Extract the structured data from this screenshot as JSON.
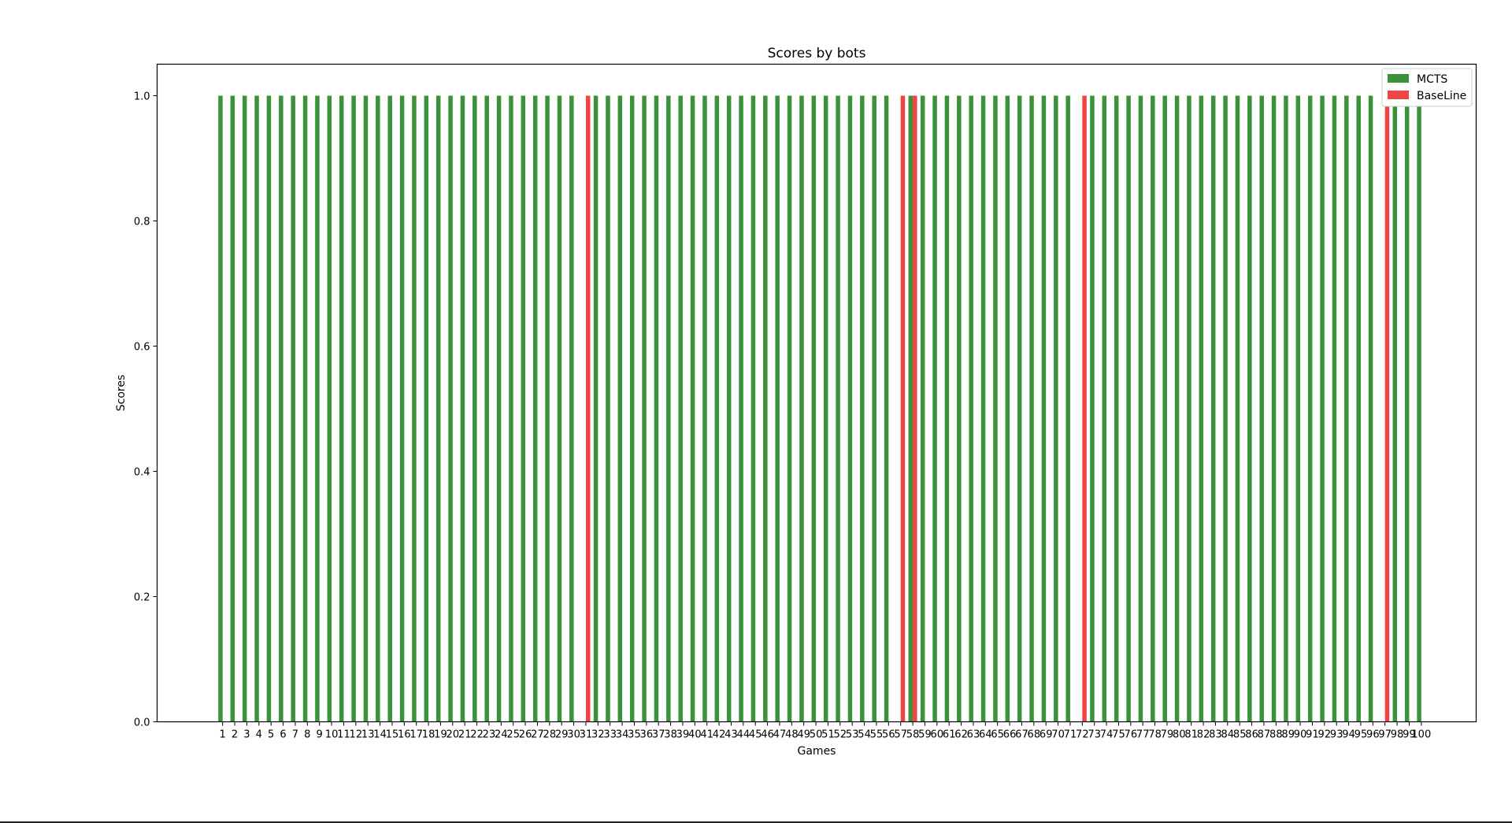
{
  "chart_data": {
    "type": "bar",
    "title": "Scores by bots",
    "xlabel": "Games",
    "ylabel": "Scores",
    "ylim": [
      0,
      1.05
    ],
    "yticks": [
      "0.0",
      "0.2",
      "0.4",
      "0.6",
      "0.8",
      "1.0"
    ],
    "categories": [
      "1",
      "2",
      "3",
      "4",
      "5",
      "6",
      "7",
      "8",
      "9",
      "10",
      "11",
      "12",
      "13",
      "14",
      "15",
      "16",
      "17",
      "18",
      "19",
      "20",
      "21",
      "22",
      "23",
      "24",
      "25",
      "26",
      "27",
      "28",
      "29",
      "30",
      "31",
      "32",
      "33",
      "34",
      "35",
      "36",
      "37",
      "38",
      "39",
      "40",
      "41",
      "42",
      "43",
      "44",
      "45",
      "46",
      "47",
      "48",
      "49",
      "50",
      "51",
      "52",
      "53",
      "54",
      "55",
      "56",
      "57",
      "58",
      "59",
      "60",
      "61",
      "62",
      "63",
      "64",
      "65",
      "66",
      "67",
      "68",
      "69",
      "70",
      "71",
      "72",
      "73",
      "74",
      "75",
      "76",
      "77",
      "78",
      "79",
      "80",
      "81",
      "82",
      "83",
      "84",
      "85",
      "86",
      "87",
      "88",
      "89",
      "90",
      "91",
      "92",
      "93",
      "94",
      "95",
      "96",
      "97",
      "98",
      "99",
      "100"
    ],
    "legend_position": "top-right",
    "grid": false,
    "series": [
      {
        "name": "MCTS",
        "color": "#3a923a",
        "values": [
          1,
          1,
          1,
          1,
          1,
          1,
          1,
          1,
          1,
          1,
          1,
          1,
          1,
          1,
          1,
          1,
          1,
          1,
          1,
          1,
          1,
          1,
          1,
          1,
          1,
          1,
          1,
          1,
          1,
          1,
          0,
          1,
          1,
          1,
          1,
          1,
          1,
          1,
          1,
          1,
          1,
          1,
          1,
          1,
          1,
          1,
          1,
          1,
          1,
          1,
          1,
          1,
          1,
          1,
          1,
          1,
          0,
          1,
          1,
          1,
          1,
          1,
          1,
          1,
          1,
          1,
          1,
          1,
          1,
          1,
          1,
          0,
          1,
          1,
          1,
          1,
          1,
          1,
          1,
          1,
          1,
          1,
          1,
          1,
          1,
          1,
          1,
          1,
          1,
          1,
          1,
          1,
          1,
          1,
          1,
          1,
          0,
          1,
          1,
          1
        ]
      },
      {
        "name": "BaseLine",
        "color": "#ef4444",
        "values": [
          0,
          0,
          0,
          0,
          0,
          0,
          0,
          0,
          0,
          0,
          0,
          0,
          0,
          0,
          0,
          0,
          0,
          0,
          0,
          0,
          0,
          0,
          0,
          0,
          0,
          0,
          0,
          0,
          0,
          0,
          1,
          0,
          0,
          0,
          0,
          0,
          0,
          0,
          0,
          0,
          0,
          0,
          0,
          0,
          0,
          0,
          0,
          0,
          0,
          0,
          0,
          0,
          0,
          0,
          0,
          0,
          1,
          1,
          0,
          0,
          0,
          0,
          0,
          0,
          0,
          0,
          0,
          0,
          0,
          0,
          0,
          1,
          0,
          0,
          0,
          0,
          0,
          0,
          0,
          0,
          0,
          0,
          0,
          0,
          0,
          0,
          0,
          0,
          0,
          0,
          0,
          0,
          0,
          0,
          0,
          0,
          1,
          0,
          0,
          0
        ]
      }
    ]
  }
}
